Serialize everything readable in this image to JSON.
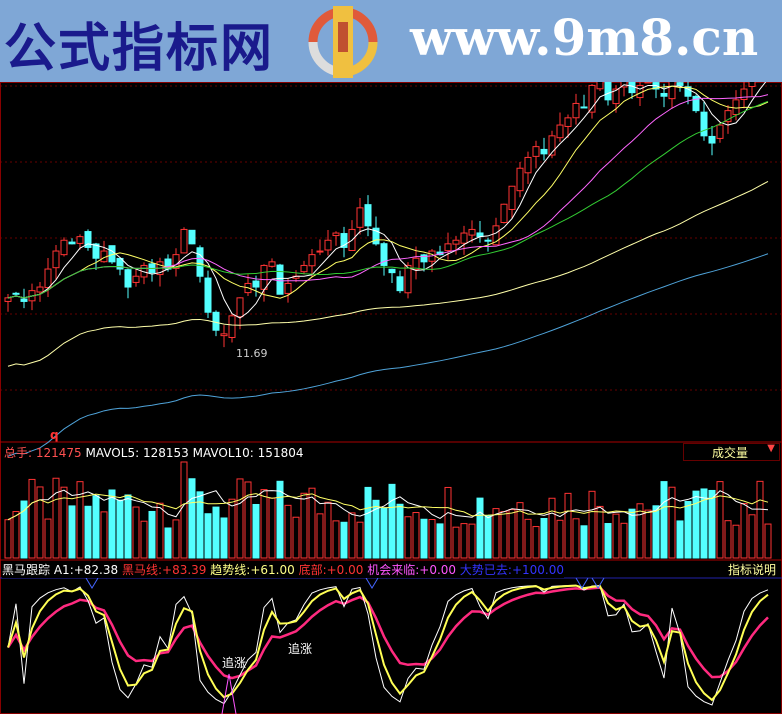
{
  "banner": {
    "site_name": "公式指标网",
    "url": "www.9m8.cn",
    "logo_text": "www.9m8.cn"
  },
  "main_chart": {
    "low_marker": "11.69",
    "period_marker": "q",
    "closes": [
      13.0,
      13.1,
      12.9,
      13.2,
      13.3,
      13.8,
      14.3,
      14.6,
      14.5,
      14.7,
      14.4,
      14.1,
      14.3,
      14.0,
      13.8,
      13.3,
      13.6,
      13.9,
      13.7,
      14.0,
      13.8,
      14.2,
      14.9,
      14.5,
      13.6,
      12.6,
      12.1,
      12.0,
      12.5,
      13.0,
      13.4,
      13.3,
      13.9,
      14.0,
      13.1,
      13.4,
      13.6,
      13.9,
      14.2,
      14.3,
      14.6,
      14.8,
      14.4,
      14.9,
      15.5,
      15.0,
      14.5,
      13.9,
      13.7,
      13.2,
      13.9,
      14.1,
      14.0,
      14.3,
      14.2,
      14.5,
      14.6,
      14.8,
      14.9,
      14.7,
      14.6,
      15.0,
      15.6,
      16.1,
      16.6,
      16.9,
      17.2,
      17.0,
      17.5,
      17.8,
      18.0,
      18.4,
      18.3,
      18.9,
      19.3,
      18.5,
      18.8,
      19.1,
      18.7,
      18.9,
      19.0,
      18.8,
      18.6,
      19.1,
      18.9,
      18.6,
      18.2,
      17.5,
      17.3,
      17.8,
      18.2,
      18.5,
      18.8,
      19.1,
      19.4,
      19.6
    ],
    "ma_periods": [
      5,
      10,
      20,
      30,
      60,
      120
    ],
    "ma_colors": [
      "#ffffff",
      "#ffff66",
      "#ff66ff",
      "#33cc33",
      "#ffffaa",
      "#4fa3d9"
    ],
    "up_color": "#ff3333",
    "down_color": "#54ffff"
  },
  "volume_panel": {
    "label": "总手:",
    "value": "121475",
    "mavol5_label": "MAVOL5:",
    "mavol5": "128153",
    "mavol10_label": "MAVOL10:",
    "mavol10": "151804",
    "selector": "成交量"
  },
  "oscillator": {
    "name": "黑马跟踪",
    "a1_label": "A1:",
    "a1": "+82.38",
    "heima_label": "黑马线:",
    "heima": "+83.39",
    "trend_label": "趋势线:",
    "trend": "+61.00",
    "bottom_label": "底部:",
    "bottom": "+0.00",
    "chance_label": "机会来临:",
    "chance": "+0.00",
    "gone_label": "大势已去:",
    "gone": "+100.00",
    "help": "指标说明",
    "marker1": "追涨",
    "marker2": "追涨"
  }
}
